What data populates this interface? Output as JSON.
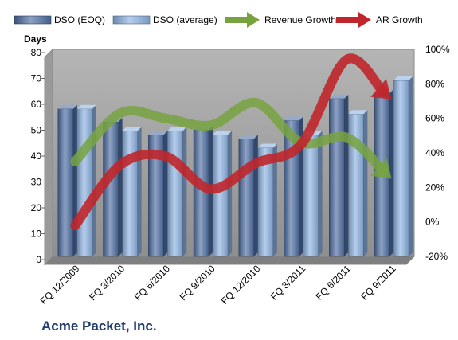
{
  "chart_data": {
    "type": "bar",
    "title": "",
    "company": "Acme Packet, Inc.",
    "ylabel": "Days",
    "y2label": "",
    "categories": [
      "FQ 12/2009",
      "FQ 3/2010",
      "FQ 6/2010",
      "FQ 9/2010",
      "FQ 12/2010",
      "FQ 3/2011",
      "FQ 6/2011",
      "FQ 9/2011"
    ],
    "ylim": [
      0,
      80
    ],
    "yticks": [
      "0",
      "10",
      "20",
      "30",
      "40",
      "50",
      "60",
      "70",
      "80"
    ],
    "y2lim": [
      -20,
      100
    ],
    "y2ticks": [
      "-20%",
      "0%",
      "20%",
      "40%",
      "60%",
      "80%",
      "100%"
    ],
    "bar_series": [
      {
        "name": "DSO (EOQ)",
        "values": [
          57,
          52,
          47,
          49,
          45.5,
          52.5,
          61,
          63
        ],
        "color": "#4f6fa3"
      },
      {
        "name": "DSO (average)",
        "values": [
          57,
          48.5,
          48.5,
          47,
          42,
          47,
          55,
          68
        ],
        "color": "#8eb4e3"
      }
    ],
    "line_series": [
      {
        "name": "Revenue Growth",
        "axis": "secondary",
        "values": [
          35,
          63,
          60,
          56,
          69,
          46,
          49,
          25
        ],
        "color": "#77a33f"
      },
      {
        "name": "AR Growth",
        "axis": "secondary",
        "values": [
          -2,
          33,
          38,
          19,
          34,
          45,
          94,
          71
        ],
        "color": "#c0262b"
      }
    ],
    "legend": {
      "position": "top"
    },
    "grid": false,
    "colors": {
      "plot_background": "#a6a6a6",
      "frame": "#8a8a8a",
      "company_text": "#1f3a6e"
    }
  }
}
